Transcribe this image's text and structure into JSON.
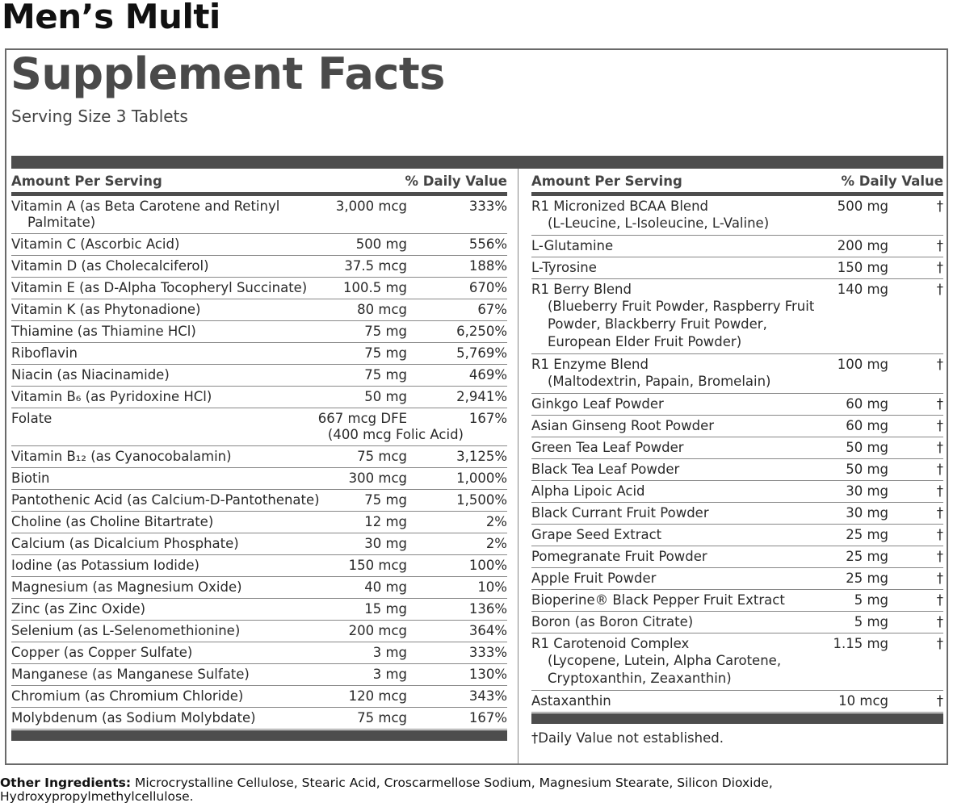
{
  "product": "Men’s Multi",
  "title": "Supplement Facts",
  "serving_size": "Serving Size 3 Tablets",
  "left": {
    "header": {
      "amount": "Amount Per Serving",
      "dv": "% Daily Value"
    },
    "rows": [
      {
        "name": "Vitamin A (as Beta Carotene and Retinyl Palmitate)",
        "amount": "3,000 mcg",
        "dv": "333%"
      },
      {
        "name": "Vitamin C (Ascorbic Acid)",
        "amount": "500 mg",
        "dv": "556%"
      },
      {
        "name": "Vitamin D (as Cholecalciferol)",
        "amount": "37.5 mcg",
        "dv": "188%"
      },
      {
        "name": "Vitamin E (as D-Alpha Tocopheryl Succinate)",
        "amount": "100.5 mg",
        "dv": "670%"
      },
      {
        "name": "Vitamin K (as Phytonadione)",
        "amount": "80 mcg",
        "dv": "67%"
      },
      {
        "name": "Thiamine (as Thiamine HCl)",
        "amount": "75 mg",
        "dv": "6,250%"
      },
      {
        "name": "Riboflavin",
        "amount": "75 mg",
        "dv": "5,769%"
      },
      {
        "name": "Niacin (as Niacinamide)",
        "amount": "75 mg",
        "dv": "469%"
      },
      {
        "name": "Vitamin B₆ (as Pyridoxine HCl)",
        "amount": "50 mg",
        "dv": "2,941%"
      },
      {
        "name": "Folate",
        "amount": "667 mcg DFE",
        "amount_note": "(400 mcg Folic Acid)",
        "dv": "167%"
      },
      {
        "name": "Vitamin B₁₂ (as Cyanocobalamin)",
        "amount": "75 mcg",
        "dv": "3,125%"
      },
      {
        "name": "Biotin",
        "amount": "300 mcg",
        "dv": "1,000%"
      },
      {
        "name": "Pantothenic Acid (as Calcium-D-Pantothenate)",
        "amount": "75 mg",
        "dv": "1,500%"
      },
      {
        "name": "Choline (as Choline Bitartrate)",
        "amount": "12 mg",
        "dv": "2%"
      },
      {
        "name": "Calcium (as Dicalcium Phosphate)",
        "amount": "30 mg",
        "dv": "2%"
      },
      {
        "name": "Iodine (as Potassium Iodide)",
        "amount": "150 mcg",
        "dv": "100%"
      },
      {
        "name": "Magnesium (as Magnesium Oxide)",
        "amount": "40 mg",
        "dv": "10%"
      },
      {
        "name": "Zinc (as Zinc Oxide)",
        "amount": "15 mg",
        "dv": "136%"
      },
      {
        "name": "Selenium (as L-Selenomethionine)",
        "amount": "200 mcg",
        "dv": "364%"
      },
      {
        "name": "Copper (as Copper Sulfate)",
        "amount": "3 mg",
        "dv": "333%"
      },
      {
        "name": "Manganese (as Manganese Sulfate)",
        "amount": "3 mg",
        "dv": "130%"
      },
      {
        "name": "Chromium (as Chromium Chloride)",
        "amount": "120 mcg",
        "dv": "343%"
      },
      {
        "name": "Molybdenum (as Sodium Molybdate)",
        "amount": "75 mcg",
        "dv": "167%"
      }
    ]
  },
  "right": {
    "header": {
      "amount": "Amount Per Serving",
      "dv": "% Daily Value"
    },
    "rows": [
      {
        "name": "R1 Micronized BCAA Blend",
        "detail": "(L-Leucine, L-Isoleucine, L-Valine)",
        "amount": "500 mg",
        "dv": "†"
      },
      {
        "name": "L-Glutamine",
        "amount": "200 mg",
        "dv": "†"
      },
      {
        "name": "L-Tyrosine",
        "amount": "150 mg",
        "dv": "†"
      },
      {
        "name": "R1 Berry Blend",
        "detail": "(Blueberry Fruit Powder, Raspberry Fruit Powder, Blackberry Fruit Powder, European Elder Fruit Powder)",
        "amount": "140 mg",
        "dv": "†"
      },
      {
        "name": "R1 Enzyme Blend",
        "detail": "(Maltodextrin, Papain, Bromelain)",
        "amount": "100 mg",
        "dv": "†"
      },
      {
        "name": "Ginkgo Leaf Powder",
        "amount": "60 mg",
        "dv": "†"
      },
      {
        "name": "Asian Ginseng Root Powder",
        "amount": "60 mg",
        "dv": "†"
      },
      {
        "name": "Green Tea Leaf Powder",
        "amount": "50 mg",
        "dv": "†"
      },
      {
        "name": "Black Tea Leaf Powder",
        "amount": "50 mg",
        "dv": "†"
      },
      {
        "name": "Alpha Lipoic Acid",
        "amount": "30 mg",
        "dv": "†"
      },
      {
        "name": "Black Currant Fruit Powder",
        "amount": "30 mg",
        "dv": "†"
      },
      {
        "name": "Grape Seed Extract",
        "amount": "25 mg",
        "dv": "†"
      },
      {
        "name": "Pomegranate Fruit Powder",
        "amount": "25 mg",
        "dv": "†"
      },
      {
        "name": "Apple Fruit Powder",
        "amount": "25 mg",
        "dv": "†"
      },
      {
        "name": "Bioperine® Black Pepper Fruit Extract",
        "amount": "5 mg",
        "dv": "†"
      },
      {
        "name": "Boron (as Boron Citrate)",
        "amount": "5 mg",
        "dv": "†"
      },
      {
        "name": "R1 Carotenoid Complex",
        "detail": "(Lycopene, Lutein, Alpha Carotene, Cryptoxanthin, Zeaxanthin)",
        "amount": "1.15 mg",
        "dv": "†"
      },
      {
        "name": "Astaxanthin",
        "amount": "10 mcg",
        "dv": "†"
      }
    ]
  },
  "footnote": "†Daily Value not established.",
  "other_ingredients": {
    "label": "Other Ingredients:",
    "text": "Microcrystalline Cellulose, Stearic Acid, Croscarmellose Sodium, Magnesium Stearate, Silicon Dioxide, Hydroxypropylmethylcellulose."
  }
}
